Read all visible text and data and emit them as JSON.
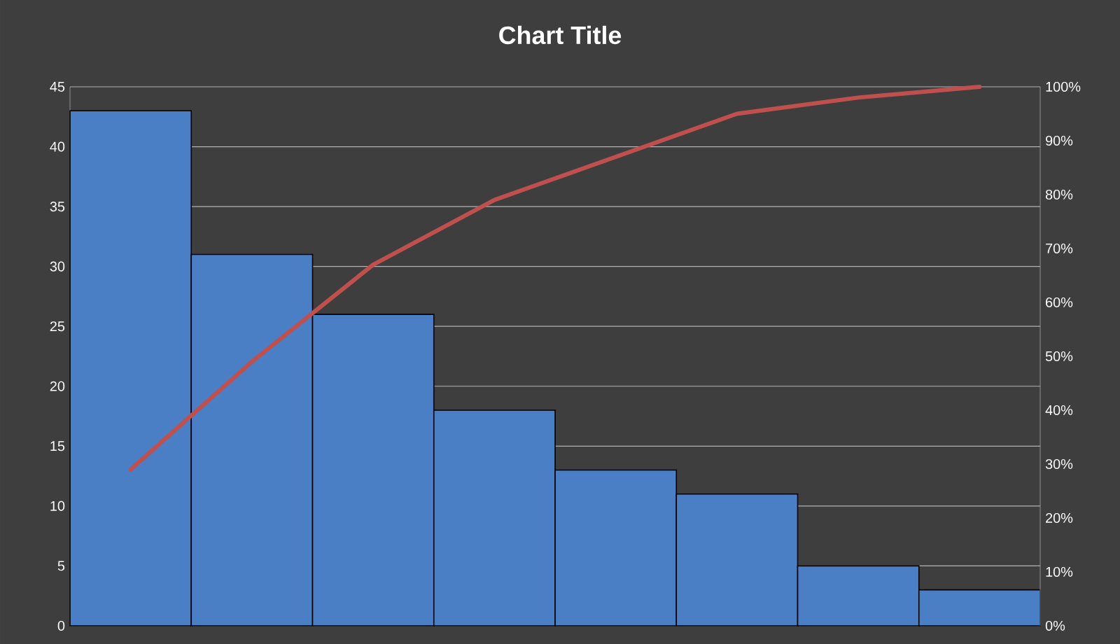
{
  "chart_data": {
    "type": "bar",
    "title": "Chart Title",
    "categories": [
      null,
      null,
      null,
      null,
      null,
      null,
      null,
      null
    ],
    "series": [
      {
        "color": "#4a7ec5",
        "values": [
          43,
          31,
          26,
          18,
          13,
          11,
          5,
          3
        ]
      },
      {
        "type": "line",
        "axis": "y2",
        "color": "#c0504d",
        "values": [
          29,
          49,
          67,
          79,
          87,
          95,
          98,
          100
        ]
      }
    ],
    "ylim": [
      0,
      45
    ],
    "yticks": [
      0,
      5,
      10,
      15,
      20,
      25,
      30,
      35,
      40,
      45
    ],
    "y2lim": [
      0,
      100
    ],
    "y2ticks": [
      {
        "value": 0,
        "label": "0%"
      },
      {
        "value": 10,
        "label": "10%"
      },
      {
        "value": 20,
        "label": "20%"
      },
      {
        "value": 30,
        "label": "30%"
      },
      {
        "value": 40,
        "label": "40%"
      },
      {
        "value": 50,
        "label": "50%"
      },
      {
        "value": 60,
        "label": "60%"
      },
      {
        "value": 70,
        "label": "70%"
      },
      {
        "value": 80,
        "label": "80%"
      },
      {
        "value": 90,
        "label": "90%"
      },
      {
        "value": 100,
        "label": "100%"
      }
    ],
    "grid": "y"
  }
}
